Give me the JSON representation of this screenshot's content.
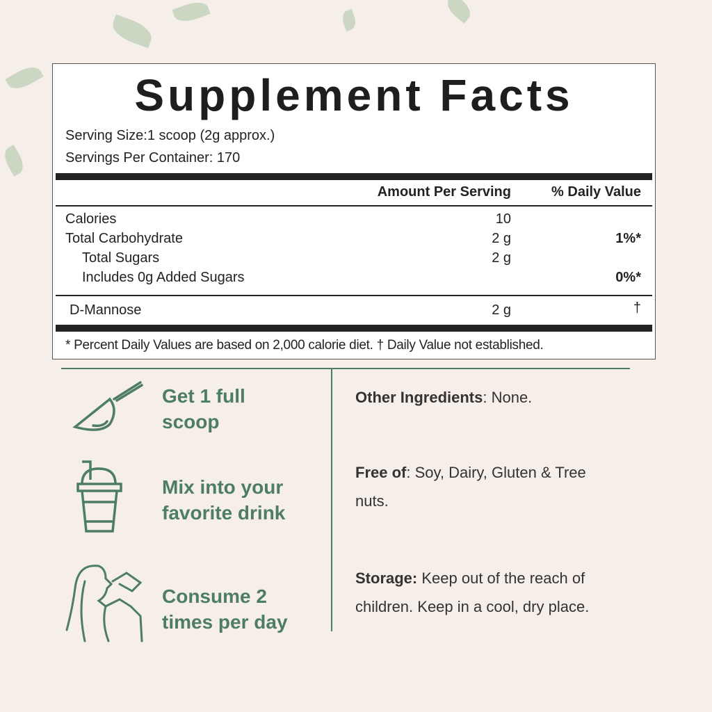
{
  "title": "Supplement Facts",
  "serving_size": "Serving Size:1 scoop (2g approx.)",
  "servings_per_container": "Servings Per Container: 170",
  "header": {
    "amount": "Amount Per Serving",
    "dv": "% Daily Value"
  },
  "rows": [
    {
      "name": "Calories",
      "amount": "10",
      "dv": ""
    },
    {
      "name": "Total Carbohydrate",
      "amount": "2 g",
      "dv": "1%*"
    },
    {
      "name": "Total Sugars",
      "amount": "2 g",
      "dv": ""
    },
    {
      "name": "Includes 0g Added Sugars",
      "amount": "",
      "dv": "0%*"
    },
    {
      "name": "D-Mannose",
      "amount": "2 g",
      "dv": "†"
    }
  ],
  "footnote": "* Percent Daily Values are based on 2,000 calorie diet. † Daily Value not established.",
  "steps": [
    {
      "line1": "Get 1 full",
      "line2": "scoop",
      "icon": "scoop-icon"
    },
    {
      "line1": "Mix into your",
      "line2": "favorite drink",
      "icon": "drink-cup-icon"
    },
    {
      "line1": "Consume 2",
      "line2": "times per day",
      "icon": "woman-drinking-icon"
    }
  ],
  "info": [
    {
      "label": "Other Ingredients",
      "text": ": None."
    },
    {
      "label": "Free of",
      "text": ": Soy, Dairy, Gluten & Tree nuts."
    },
    {
      "label": "Storage:",
      "text": " Keep out of the reach of children. Keep in a cool, dry place."
    }
  ],
  "colors": {
    "green": "#4d7d62",
    "background": "#f6eee9"
  }
}
